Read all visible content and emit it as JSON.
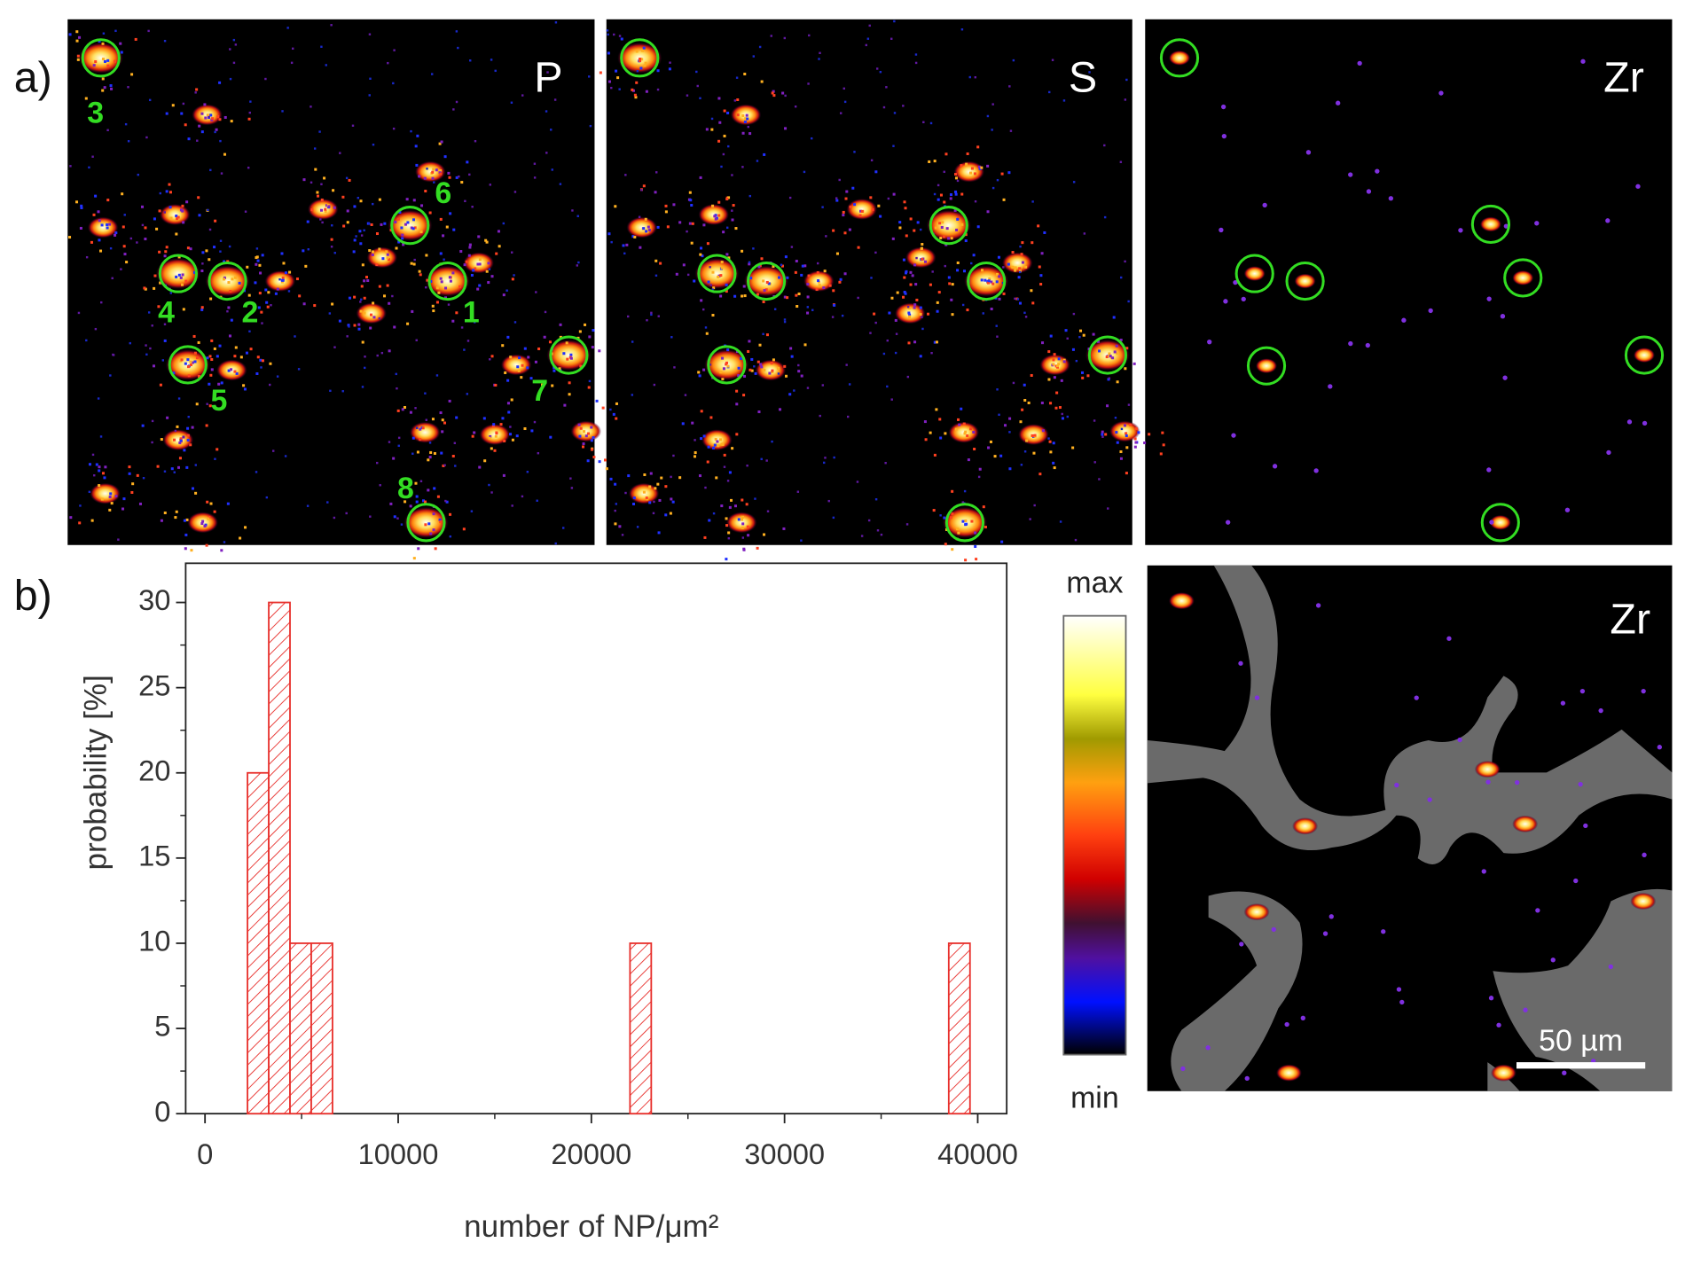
{
  "panel_a": {
    "label": "a)",
    "maps": [
      "P",
      "S",
      "Zr"
    ],
    "particle_labels": [
      "1",
      "2",
      "3",
      "4",
      "5",
      "6",
      "7",
      "8"
    ]
  },
  "panel_b": {
    "label": "b)"
  },
  "colorbar": {
    "max": "max",
    "min": "min"
  },
  "overlay": {
    "element": "Zr",
    "scale_bar": "50 µm"
  },
  "chart_data": {
    "type": "histogram",
    "xlabel": "number of NP/μm²",
    "ylabel": "probability [%]",
    "bins": [
      2200,
      3300,
      4400,
      5500,
      6600,
      7700,
      8800,
      9900,
      11000,
      12100,
      13200,
      14300,
      15400,
      16500,
      17600,
      18700,
      19800,
      20900,
      22000,
      23100,
      24200,
      25300,
      26400,
      27500,
      28600,
      29700,
      30800,
      31900,
      33000,
      34100,
      35200,
      36300,
      37400,
      38500,
      39600
    ],
    "values": [
      20,
      30,
      10,
      10,
      0,
      0,
      0,
      0,
      0,
      0,
      0,
      0,
      0,
      0,
      0,
      0,
      0,
      0,
      10,
      0,
      0,
      0,
      0,
      0,
      0,
      0,
      0,
      0,
      0,
      0,
      0,
      0,
      0,
      10
    ],
    "color": "#e8302c",
    "hatch": true,
    "xlim": [
      -1000,
      41500
    ],
    "ylim": [
      0,
      32.3
    ],
    "xticks": [
      0,
      10000,
      20000,
      30000,
      40000
    ],
    "yticks": [
      0,
      5,
      10,
      15,
      20,
      25,
      30
    ]
  }
}
